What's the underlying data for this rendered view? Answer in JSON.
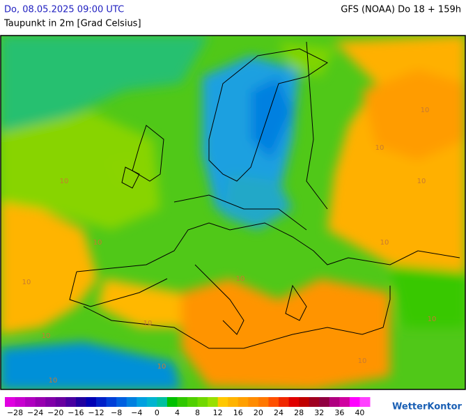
{
  "header": {
    "left": "Do, 08.05.2025 09:00 UTC",
    "right": "GFS (NOAA) Do 18 + 159h",
    "subtitle": "Taupunkt in 2m [Grad Celsius]"
  },
  "map": {
    "contour_labels": [
      "10",
      "10",
      "10",
      "10",
      "10",
      "10",
      "10",
      "10",
      "10",
      "10",
      "10",
      "10",
      "10",
      "10"
    ]
  },
  "legend": {
    "ticks": [
      "−28",
      "−24",
      "−20",
      "−16",
      "−12",
      "−8",
      "−4",
      "0",
      "4",
      "8",
      "12",
      "16",
      "20",
      "24",
      "28",
      "32",
      "36",
      "40"
    ],
    "colors": [
      "#e000e0",
      "#c800d0",
      "#b000c0",
      "#9800b0",
      "#8000a8",
      "#6800a0",
      "#4800a0",
      "#2000a0",
      "#0000b4",
      "#0020c8",
      "#0040d8",
      "#0060e0",
      "#0080e0",
      "#00a0e0",
      "#00b4d0",
      "#00c0a0",
      "#00c000",
      "#30c800",
      "#50d000",
      "#70d800",
      "#98e000",
      "#ffc800",
      "#ffb400",
      "#ffa000",
      "#ff8c00",
      "#ff7800",
      "#ff5000",
      "#f02800",
      "#e00000",
      "#c00000",
      "#a00020",
      "#900040",
      "#b00080",
      "#d000a0",
      "#ff00ff",
      "#ff40ff"
    ]
  },
  "logo": "WetterKontor"
}
